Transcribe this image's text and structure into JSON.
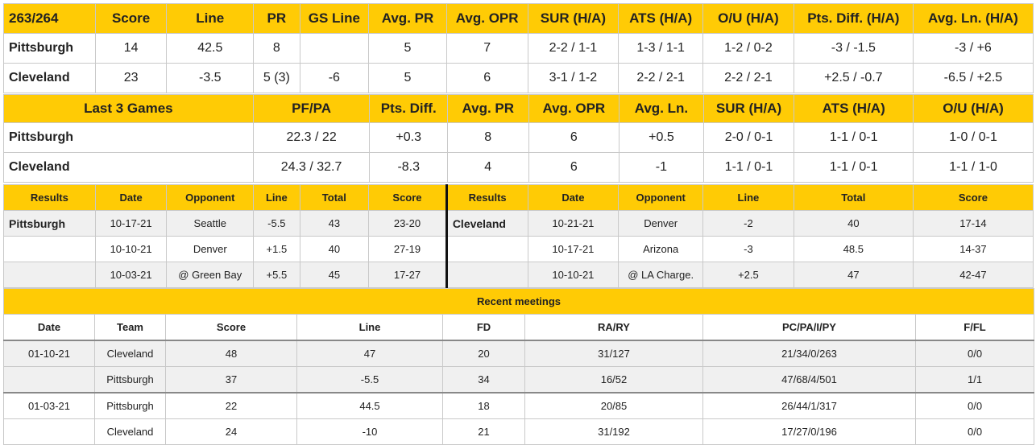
{
  "matchup": {
    "headers": [
      "263/264",
      "Score",
      "Line",
      "PR",
      "GS Line",
      "Avg. PR",
      "Avg. OPR",
      "SUR (H/A)",
      "ATS (H/A)",
      "O/U (H/A)",
      "Pts. Diff. (H/A)",
      "Avg. Ln. (H/A)"
    ],
    "rows": [
      [
        "Pittsburgh",
        "14",
        "42.5",
        "8",
        "",
        "5",
        "7",
        "2-2 / 1-1",
        "1-3 / 1-1",
        "1-2 / 0-2",
        "-3 / -1.5",
        "-3 / +6"
      ],
      [
        "Cleveland",
        "23",
        "-3.5",
        "5 (3)",
        "-6",
        "5",
        "6",
        "3-1 / 1-2",
        "2-2 / 2-1",
        "2-2 / 2-1",
        "+2.5 / -0.7",
        "-6.5 / +2.5"
      ]
    ]
  },
  "last3": {
    "headers": [
      "Last 3 Games",
      "PF/PA",
      "Pts. Diff.",
      "Avg. PR",
      "Avg. OPR",
      "Avg. Ln.",
      "SUR (H/A)",
      "ATS (H/A)",
      "O/U (H/A)"
    ],
    "rows": [
      [
        "Pittsburgh",
        "22.3 / 22",
        "+0.3",
        "8",
        "6",
        "+0.5",
        "2-0 / 0-1",
        "1-1 / 0-1",
        "1-0 / 0-1"
      ],
      [
        "Cleveland",
        "24.3 / 32.7",
        "-8.3",
        "4",
        "6",
        "-1",
        "1-1 / 0-1",
        "1-1 / 0-1",
        "1-1 / 1-0"
      ]
    ]
  },
  "results": {
    "headers_left": [
      "Results",
      "Date",
      "Opponent",
      "Line",
      "Total",
      "Score"
    ],
    "headers_right": [
      "Results",
      "Date",
      "Opponent",
      "Line",
      "Total",
      "Score"
    ],
    "left_team": "Pittsburgh",
    "right_team": "Cleveland",
    "left_rows": [
      [
        "10-17-21",
        "Seattle",
        "-5.5",
        "43",
        "23-20"
      ],
      [
        "10-10-21",
        "Denver",
        "+1.5",
        "40",
        "27-19"
      ],
      [
        "10-03-21",
        "@ Green Bay",
        "+5.5",
        "45",
        "17-27"
      ]
    ],
    "right_rows": [
      [
        "10-21-21",
        "Denver",
        "-2",
        "40",
        "17-14"
      ],
      [
        "10-17-21",
        "Arizona",
        "-3",
        "48.5",
        "14-37"
      ],
      [
        "10-10-21",
        "@ LA Charge.",
        "+2.5",
        "47",
        "42-47"
      ]
    ]
  },
  "meetings": {
    "title": "Recent meetings",
    "headers": [
      "Date",
      "Team",
      "Score",
      "Line",
      "FD",
      "RA/RY",
      "PC/PA/I/PY",
      "F/FL"
    ],
    "rows": [
      [
        "01-10-21",
        "Cleveland",
        "48",
        "47",
        "20",
        "31/127",
        "21/34/0/263",
        "0/0"
      ],
      [
        "",
        "Pittsburgh",
        "37",
        "-5.5",
        "34",
        "16/52",
        "47/68/4/501",
        "1/1"
      ],
      [
        "01-03-21",
        "Pittsburgh",
        "22",
        "44.5",
        "18",
        "20/85",
        "26/44/1/317",
        "0/0"
      ],
      [
        "",
        "Cleveland",
        "24",
        "-10",
        "21",
        "31/192",
        "17/27/0/196",
        "0/0"
      ]
    ]
  }
}
